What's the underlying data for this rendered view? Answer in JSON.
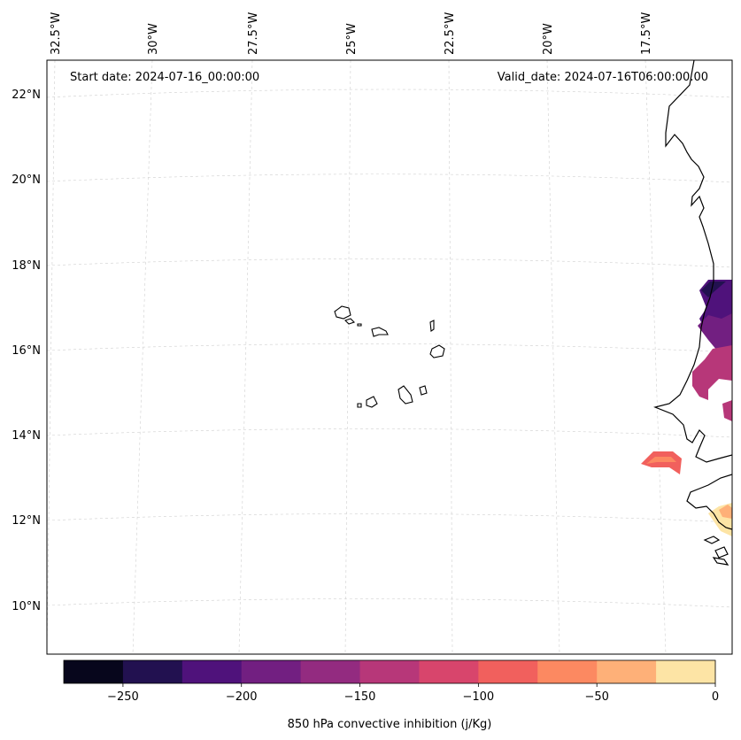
{
  "annotations": {
    "start_date": "Start date: 2024-07-16_00:00:00",
    "valid_date": "Valid_date: 2024-07-16T06:00:00.00"
  },
  "longitude_labels": [
    "32.5°W",
    "30°W",
    "27.5°W",
    "25°W",
    "22.5°W",
    "20°W",
    "17.5°W"
  ],
  "latitude_labels": [
    "22°N",
    "20°N",
    "18°N",
    "16°N",
    "14°N",
    "12°N",
    "10°N"
  ],
  "colorbar": {
    "label": "850 hPa convective inhibition (j/Kg)",
    "levels": [
      -275,
      -250,
      -225,
      -200,
      -175,
      -150,
      -125,
      -100,
      -75,
      -50,
      -25,
      0
    ],
    "tick_labels": [
      "−250",
      "−200",
      "−150",
      "−100",
      "−50",
      "0"
    ],
    "colors": [
      "#07061c",
      "#221150",
      "#4f127b",
      "#721f81",
      "#932b80",
      "#b73779",
      "#d8456c",
      "#f1605d",
      "#fc8961",
      "#feb078",
      "#fde4a5"
    ]
  },
  "map": {
    "coastline_color": "#000000",
    "grid": "dashed light gray"
  }
}
